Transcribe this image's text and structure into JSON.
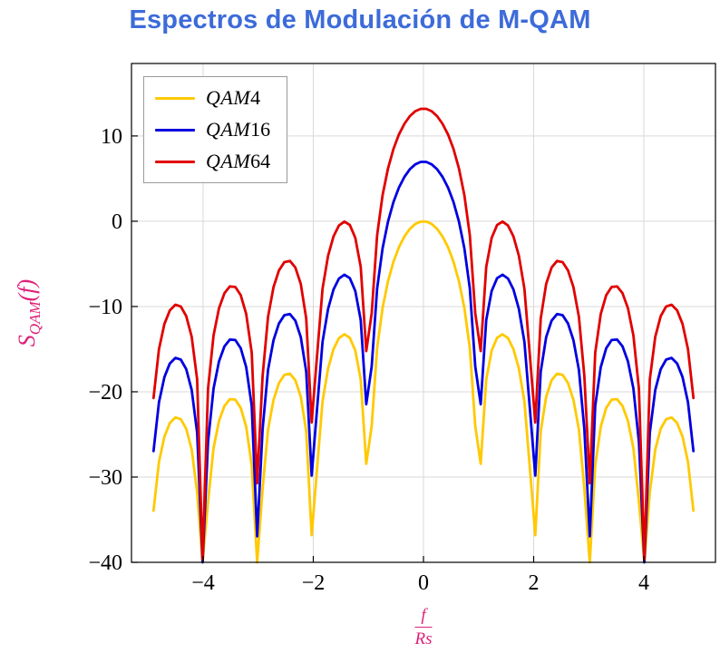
{
  "chart_data": {
    "type": "line",
    "title": "Espectros de Modulación de M-QAM",
    "ylabel": {
      "base": "S",
      "sub": "QAM",
      "rest": "(f)"
    },
    "xlabel": {
      "numerator": "f",
      "denominator": "Rs"
    },
    "xlim": [
      -5.3,
      5.3
    ],
    "ylim": [
      -40,
      18.5
    ],
    "domain": [
      -4.9,
      4.9
    ],
    "samples": 100,
    "grid": true,
    "legend_position": "top-left",
    "function": "y_dB = offset_db + 20*log10(|sin(pi*x)/(pi*x)|), clipped at -40 dB",
    "xticks": [
      {
        "v": -4,
        "label": "−4"
      },
      {
        "v": -2,
        "label": "−2"
      },
      {
        "v": 0,
        "label": "0"
      },
      {
        "v": 2,
        "label": "2"
      },
      {
        "v": 4,
        "label": "4"
      }
    ],
    "yticks": [
      {
        "v": 10,
        "label": "10"
      },
      {
        "v": 0,
        "label": "0"
      },
      {
        "v": -10,
        "label": "−10"
      },
      {
        "v": -20,
        "label": "−20"
      },
      {
        "v": -30,
        "label": "−30"
      },
      {
        "v": -40,
        "label": "−40"
      }
    ],
    "series": [
      {
        "name": "QAM4",
        "label_alpha": "QAM",
        "label_num": "4",
        "color": "#ffc900",
        "offset_db": 0,
        "peak_db": 0
      },
      {
        "name": "QAM16",
        "label_alpha": "QAM",
        "label_num": "16",
        "color": "#0000e0",
        "offset_db": 6.99,
        "peak_db": 7
      },
      {
        "name": "QAM64",
        "label_alpha": "QAM",
        "label_num": "64",
        "color": "#e10000",
        "offset_db": 13.22,
        "peak_db": 13.2
      }
    ],
    "colors": {
      "title": "#3d6bd9",
      "axis_label": "#df2179",
      "grid": "#d9d9d9",
      "axis": "#000000",
      "tick_label": "#000000"
    }
  }
}
